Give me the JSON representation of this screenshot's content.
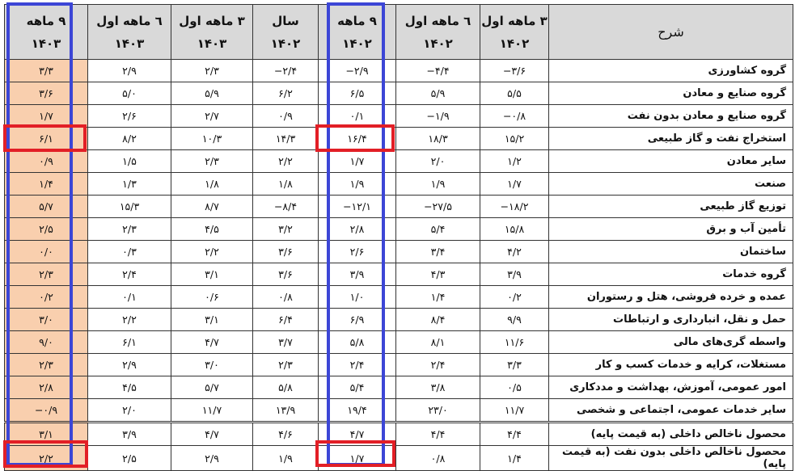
{
  "header": {
    "description": "شرح",
    "columns": [
      {
        "period": "۳ ماهه اول",
        "year": "۱۴۰۲"
      },
      {
        "period": "٦ ماهه اول",
        "year": "۱۴۰۲"
      },
      {
        "period": "۹ ماهه",
        "year": "۱۴۰۲"
      },
      {
        "period": "سال",
        "year": "۱۴۰۲"
      },
      {
        "period": "۳ ماهه اول",
        "year": "۱۴۰۳"
      },
      {
        "period": "٦ ماهه اول",
        "year": "۱۴۰۳"
      },
      {
        "period": "۹ ماهه",
        "year": "۱۴۰۳"
      }
    ]
  },
  "rows": [
    {
      "label": "گروه کشاورزی",
      "values": [
        "−۳/۶",
        "−۴/۴",
        "−۲/۹",
        "−۲/۴",
        "۲/۳",
        "۲/۹",
        "۳/۳"
      ]
    },
    {
      "label": "گروه صنایع و معادن",
      "values": [
        "۵/۵",
        "۵/۹",
        "۶/۵",
        "۶/۲",
        "۵/۹",
        "۵/۰",
        "۳/۶"
      ]
    },
    {
      "label": "گروه صنایع و معادن بدون نفت",
      "values": [
        "−۰/۸",
        "−۱/۹",
        "۰/۱",
        "۰/۹",
        "۲/۷",
        "۲/۶",
        "۱/۷"
      ]
    },
    {
      "label": "استخراج نفت و گاز طبیعی",
      "values": [
        "۱۵/۲",
        "۱۸/۳",
        "۱۶/۴",
        "۱۴/۳",
        "۱۰/۳",
        "۸/۲",
        "۶/۱"
      ]
    },
    {
      "label": "سایر معادن",
      "values": [
        "۱/۲",
        "۲/۰",
        "۱/۷",
        "۲/۲",
        "۲/۳",
        "۱/۵",
        "۰/۹"
      ]
    },
    {
      "label": "صنعت",
      "values": [
        "۱/۷",
        "۱/۹",
        "۱/۹",
        "۱/۸",
        "۱/۸",
        "۱/۳",
        "۱/۴"
      ]
    },
    {
      "label": "توزیع گاز طبیعی",
      "values": [
        "−۱۸/۲",
        "−۲۷/۵",
        "−۱۲/۱",
        "−۸/۴",
        "۸/۷",
        "۱۵/۳",
        "۵/۷"
      ]
    },
    {
      "label": "تأمین آب و برق",
      "values": [
        "۱۵/۸",
        "۵/۴",
        "۲/۸",
        "۳/۲",
        "۴/۵",
        "۲/۳",
        "۲/۵"
      ]
    },
    {
      "label": "ساختمان",
      "values": [
        "۴/۲",
        "۳/۴",
        "۲/۶",
        "۳/۶",
        "۲/۲",
        "۰/۳",
        "۰/۰"
      ]
    },
    {
      "label": "گروه خدمات",
      "values": [
        "۳/۹",
        "۴/۳",
        "۳/۹",
        "۳/۶",
        "۳/۱",
        "۲/۴",
        "۲/۳"
      ]
    },
    {
      "label": "عمده و خرده فروشی، هتل و رستوران",
      "values": [
        "۰/۲",
        "۱/۴",
        "۱/۰",
        "۰/۸",
        "۰/۶",
        "۰/۱",
        "۰/۲"
      ]
    },
    {
      "label": "حمل و نقل، انبارداری و ارتباطات",
      "values": [
        "۹/۹",
        "۸/۴",
        "۶/۹",
        "۶/۴",
        "۳/۱",
        "۲/۲",
        "۳/۰"
      ]
    },
    {
      "label": "واسطه گری‌های مالی",
      "values": [
        "۱۱/۶",
        "۸/۱",
        "۵/۸",
        "۳/۷",
        "۴/۷",
        "۶/۱",
        "۹/۰"
      ]
    },
    {
      "label": "مستغلات، کرایه و خدمات کسب و کار",
      "values": [
        "۳/۳",
        "۲/۴",
        "۲/۴",
        "۲/۳",
        "۳/۰",
        "۲/۹",
        "۲/۳"
      ]
    },
    {
      "label": "امور عمومی، آموزش، بهداشت و مددکاری",
      "values": [
        "۰/۵",
        "۳/۸",
        "۵/۴",
        "۵/۸",
        "۵/۷",
        "۴/۵",
        "۲/۸"
      ]
    },
    {
      "label": "سایر خدمات عمومی، اجتماعی و شخصی",
      "values": [
        "۱۱/۷",
        "۲۳/۰",
        "۱۹/۴",
        "۱۳/۹",
        "۱۱/۷",
        "۲/۰",
        "−۰/۹"
      ]
    },
    {
      "label": "محصول ناخالص داخلی (به قیمت پایه)",
      "values": [
        "۴/۴",
        "۴/۴",
        "۴/۷",
        "۴/۶",
        "۴/۷",
        "۳/۹",
        "۳/۱"
      ]
    },
    {
      "label": "محصول ناخالص داخلی بدون نفت (به قیمت پایه)",
      "values": [
        "۱/۴",
        "۰/۸",
        "۱/۷",
        "۱/۹",
        "۲/۹",
        "۲/۵",
        "۲/۲"
      ]
    }
  ],
  "colors": {
    "highlight_column": "#f9cfae",
    "header_bg": "#d9d9d9",
    "blue_frame": "#3c46d6",
    "red_frame": "#e21f26"
  }
}
